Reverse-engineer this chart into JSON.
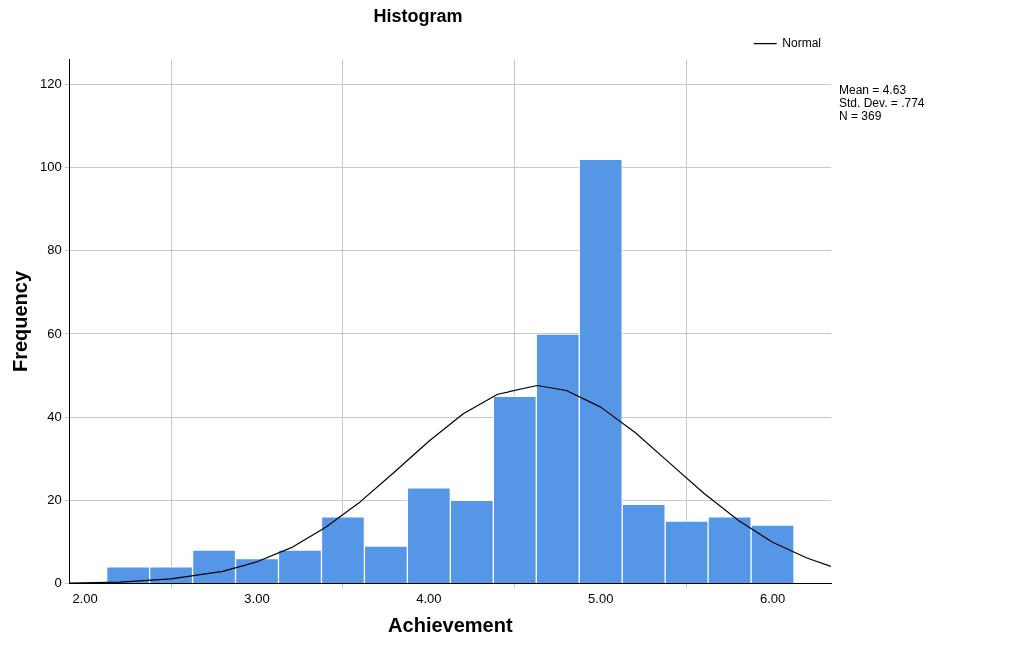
{
  "chart_data": {
    "type": "histogram",
    "title": "Histogram",
    "xlabel": "Achievement",
    "ylabel": "Frequency",
    "bins": [
      2.125,
      2.375,
      2.625,
      2.875,
      3.125,
      3.375,
      3.625,
      3.875,
      4.125,
      4.375,
      4.625,
      4.875,
      5.125,
      5.375,
      5.625,
      5.875,
      6.125
    ],
    "values": [
      4,
      4,
      8,
      6,
      8,
      16,
      9,
      23,
      20,
      45,
      60,
      102,
      19,
      15,
      16,
      14
    ],
    "color": "#5596e6",
    "series": [
      {
        "type": "line",
        "name": "Normal",
        "color": "#000000",
        "x": [
          1.91,
          2.2,
          2.5,
          2.8,
          3.0,
          3.2,
          3.4,
          3.6,
          3.8,
          4.0,
          4.2,
          4.4,
          4.63,
          4.8,
          5.0,
          5.2,
          5.4,
          5.6,
          5.8,
          6.0,
          6.2,
          6.34
        ],
        "values": [
          0.1,
          0.3,
          1.1,
          2.9,
          5.2,
          8.6,
          13.5,
          19.6,
          26.8,
          34.2,
          40.8,
          45.5,
          47.6,
          46.4,
          42.4,
          36.3,
          29,
          21.7,
          15.2,
          9.9,
          6.1,
          4.1
        ]
      }
    ],
    "xlim": [
      1.91,
      6.34
    ],
    "xticks": [
      {
        "value": 2,
        "label": "2.00"
      },
      {
        "value": 3,
        "label": "3.00"
      },
      {
        "value": 4,
        "label": "4.00"
      },
      {
        "value": 5,
        "label": "5.00"
      },
      {
        "value": 6,
        "label": "6.00"
      }
    ],
    "ylim": [
      0,
      126
    ],
    "yticks": [
      0,
      20,
      40,
      60,
      80,
      100,
      120
    ],
    "annotations": [
      "Mean = 4.63",
      "Std. Dev. = .774",
      "N = 369"
    ],
    "grid": true,
    "legend": "top right",
    "marker": "none",
    "line_style": "solid"
  }
}
